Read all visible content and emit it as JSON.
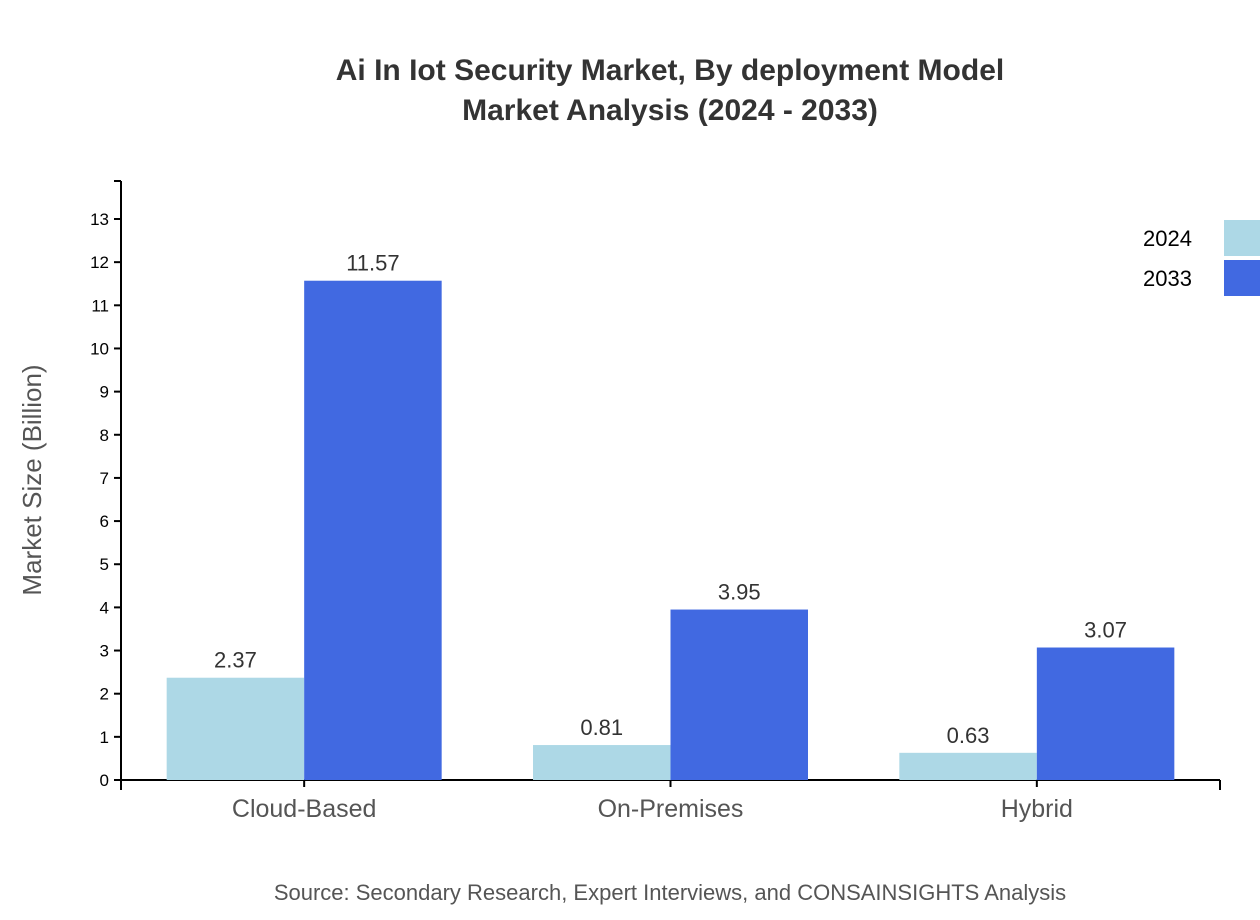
{
  "chart_data": {
    "type": "bar",
    "title": "Ai In Iot Security Market, By deployment Model",
    "subtitle": "Market Analysis (2024 - 2033)",
    "xlabel": "",
    "ylabel": "Market Size (Billion)",
    "categories": [
      "Cloud-Based",
      "On-Premises",
      "Hybrid"
    ],
    "series": [
      {
        "name": "2024",
        "values": [
          2.37,
          0.81,
          0.63
        ],
        "color": "#ADD8E6"
      },
      {
        "name": "2033",
        "values": [
          11.57,
          3.95,
          3.07
        ],
        "color": "#4169E1"
      }
    ],
    "yticks": [
      0,
      1,
      2,
      3,
      4,
      5,
      6,
      7,
      8,
      9,
      10,
      11,
      12,
      13
    ],
    "ylim": [
      0,
      13.9
    ],
    "grid": false,
    "legend": "top-right"
  },
  "source": "Source: Secondary Research, Expert Interviews, and CONSAINSIGHTS Analysis"
}
